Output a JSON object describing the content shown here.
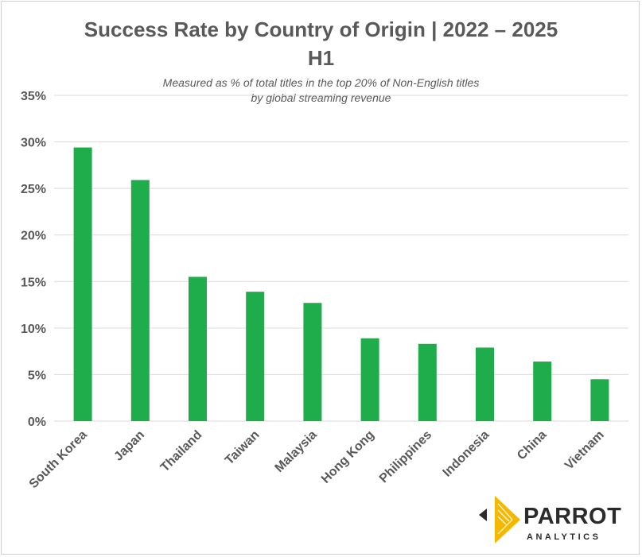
{
  "chart_data": {
    "type": "bar",
    "title": "Success Rate by Country of Origin | 2022 – 2025",
    "title_line2": "H1",
    "subtitle_line1": "Measured as % of total titles in the top 20% of Non-English titles",
    "subtitle_line2": "by global streaming revenue",
    "categories": [
      "South Korea",
      "Japan",
      "Thailand",
      "Taiwan",
      "Malaysia",
      "Hong Kong",
      "Philippines",
      "Indonesia",
      "China",
      "Vietnam"
    ],
    "values": [
      29.4,
      25.9,
      15.5,
      13.9,
      12.7,
      8.9,
      8.3,
      7.9,
      6.4,
      4.5
    ],
    "yticks": [
      "0%",
      "5%",
      "10%",
      "15%",
      "20%",
      "25%",
      "30%",
      "35%"
    ],
    "ylim": [
      0,
      35
    ],
    "ylabel": "",
    "xlabel": "",
    "grid": true,
    "bar_color": "#1fad4b"
  },
  "logo": {
    "name": "PARROT",
    "tagline": "ANALYTICS",
    "colors": [
      "#f5b800",
      "#2b2b2b"
    ]
  }
}
